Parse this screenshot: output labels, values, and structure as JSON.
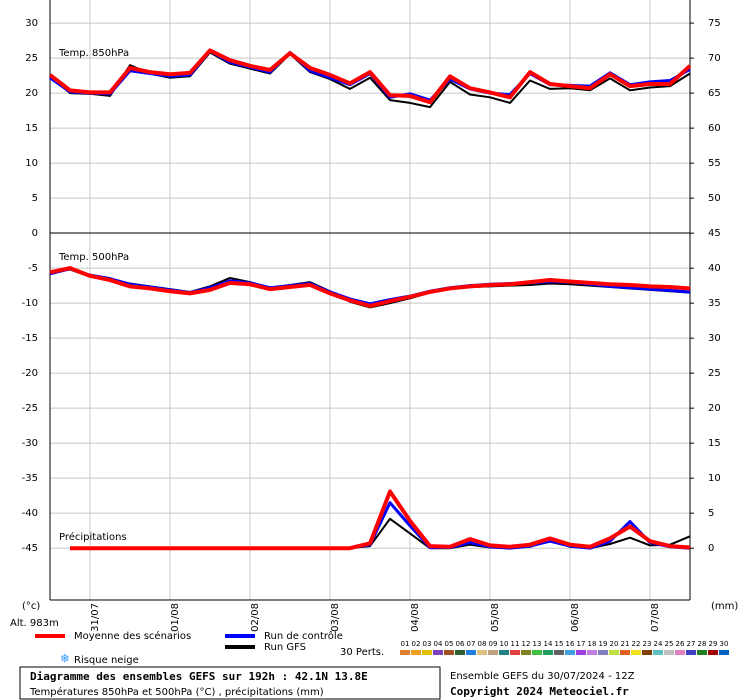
{
  "chart_data": {
    "type": "line",
    "title": "Diagramme des ensembles GEFS sur 192h : 42.1N 13.8E",
    "subtitle": "Températures 850hPa et 500hPa (°C) , précipitations (mm)",
    "run_label": "Ensemble GEFS du 30/07/2024 - 12Z",
    "copyright": "Copyright 2024 Meteociel.fr",
    "label_850": "Temp. 850hPa",
    "label_500": "Temp. 500hPa",
    "label_precip": "Précipitations",
    "y_unit": "(°c)",
    "y2_unit": "(mm)",
    "altitude": "Alt. 983m",
    "snow_label": "Risque neige",
    "perts_label": "30 Perts.",
    "grid": true,
    "x": [
      0,
      6,
      12,
      18,
      24,
      30,
      36,
      42,
      48,
      54,
      60,
      66,
      72,
      78,
      84,
      90,
      96,
      102,
      108,
      114,
      120,
      126,
      132,
      138,
      144,
      150,
      156,
      162,
      168,
      174,
      180,
      186,
      192
    ],
    "xlim": [
      0,
      192
    ],
    "xticks": [
      {
        "value": 12,
        "label": "31/07"
      },
      {
        "value": 36,
        "label": "01/08"
      },
      {
        "value": 60,
        "label": "02/08"
      },
      {
        "value": 84,
        "label": "03/08"
      },
      {
        "value": 108,
        "label": "04/08"
      },
      {
        "value": 132,
        "label": "05/08"
      },
      {
        "value": 156,
        "label": "06/08"
      },
      {
        "value": 180,
        "label": "07/08"
      }
    ],
    "ylim": [
      -52.4,
      33.3
    ],
    "yticks": [
      30,
      25,
      20,
      15,
      10,
      5,
      0,
      -5,
      -10,
      -15,
      -20,
      -25,
      -30,
      -35,
      -40,
      -45
    ],
    "y2lim": [
      -7.4,
      78.3
    ],
    "y2ticks": [
      75,
      70,
      65,
      60,
      55,
      50,
      45,
      40,
      35,
      30,
      25,
      20,
      15,
      10,
      5,
      0
    ],
    "series": [
      {
        "name": "Moyenne des scénarios",
        "color": "#ff0000",
        "t850": [
          22.6,
          20.4,
          20.1,
          20.1,
          23.6,
          23,
          22.7,
          22.9,
          26.1,
          24.7,
          23.9,
          23.3,
          25.7,
          23.6,
          22.6,
          21.4,
          23,
          19.7,
          19.6,
          18.7,
          22.4,
          20.7,
          20.1,
          19.4,
          23,
          21.3,
          21,
          20.7,
          22.7,
          21,
          21.3,
          21.3,
          23.9
        ],
        "t500": [
          -5.6,
          -5,
          -6.1,
          -6.7,
          -7.6,
          -7.9,
          -8.3,
          -8.6,
          -8.1,
          -7.1,
          -7.3,
          -8,
          -7.7,
          -7.4,
          -8.6,
          -9.6,
          -10.4,
          -9.7,
          -9.1,
          -8.4,
          -7.9,
          -7.6,
          -7.4,
          -7.3,
          -7,
          -6.7,
          -6.9,
          -7.1,
          -7.3,
          -7.4,
          -7.6,
          -7.7,
          -7.9
        ],
        "precip": [
          null,
          0,
          0,
          0,
          0,
          0,
          0,
          0,
          0,
          0,
          0,
          0,
          0,
          0,
          0,
          0,
          0.7,
          8.1,
          3.9,
          0.3,
          0.2,
          1.3,
          0.4,
          0.2,
          0.5,
          1.4,
          0.5,
          0.2,
          1.4,
          3.1,
          1,
          0.3,
          0.1
        ]
      },
      {
        "name": "Run de contrôle",
        "color": "#0000ff",
        "t850": [
          22.2,
          20.2,
          20,
          19.9,
          23.2,
          22.8,
          22.4,
          22.6,
          26,
          24.4,
          23.7,
          23,
          25.8,
          23.2,
          22.2,
          21.2,
          22.8,
          19.4,
          19.9,
          19,
          22,
          20.6,
          20,
          19.8,
          22.8,
          21.2,
          21.1,
          21,
          22.9,
          21.2,
          21.6,
          21.8,
          23.4
        ],
        "t500": [
          -5.8,
          -5.1,
          -6,
          -6.5,
          -7.3,
          -7.7,
          -8.1,
          -8.5,
          -7.8,
          -6.8,
          -7.1,
          -7.8,
          -7.5,
          -7.2,
          -8.4,
          -9.4,
          -10.1,
          -9.5,
          -9,
          -8.3,
          -7.8,
          -7.5,
          -7.3,
          -7.2,
          -7.1,
          -6.9,
          -7,
          -7.3,
          -7.6,
          -7.8,
          -8,
          -8.2,
          -8.4
        ],
        "precip": [
          null,
          0,
          0,
          0,
          0,
          0,
          0,
          0,
          0,
          0,
          0,
          0,
          0,
          0,
          0,
          0,
          0.5,
          6.5,
          3.2,
          0.1,
          0.1,
          0.8,
          0.2,
          0,
          0.3,
          1,
          0.3,
          0,
          1,
          3.8,
          0.8,
          0.2,
          0
        ]
      },
      {
        "name": "Run GFS",
        "color": "#000000",
        "t850": [
          22.4,
          20,
          19.9,
          19.6,
          24,
          22.8,
          22.2,
          22.4,
          25.8,
          24.2,
          23.5,
          22.8,
          25.6,
          23,
          22,
          20.6,
          22.2,
          19,
          18.6,
          18,
          21.6,
          19.8,
          19.4,
          18.6,
          21.8,
          20.6,
          20.7,
          20.4,
          22.1,
          20.4,
          20.8,
          21,
          22.8
        ],
        "t500": [
          -5.7,
          -5.2,
          -6.2,
          -6.6,
          -7.2,
          -7.6,
          -8,
          -8.4,
          -7.6,
          -6.4,
          -7,
          -7.8,
          -7.4,
          -7,
          -8.3,
          -9.8,
          -10.6,
          -10,
          -9.3,
          -8.5,
          -8,
          -7.7,
          -7.6,
          -7.5,
          -7.4,
          -7.2,
          -7.3,
          -7.5,
          -7.7,
          -7.9,
          -8.1,
          -8.3,
          -8.5
        ],
        "precip": [
          null,
          0,
          0,
          0,
          0,
          0,
          0,
          0,
          0,
          0,
          0,
          0,
          0,
          0,
          0,
          0,
          0.3,
          4.2,
          2.1,
          0,
          0,
          0.5,
          0.1,
          0,
          0.2,
          1.2,
          0.2,
          0,
          0.6,
          1.5,
          0.4,
          0.5,
          1.7
        ]
      }
    ],
    "perturbations": [
      {
        "label": "01",
        "color": "#e08030"
      },
      {
        "label": "02",
        "color": "#f0a020"
      },
      {
        "label": "03",
        "color": "#e0c000"
      },
      {
        "label": "04",
        "color": "#8040c0"
      },
      {
        "label": "05",
        "color": "#a05020"
      },
      {
        "label": "06",
        "color": "#306030"
      },
      {
        "label": "07",
        "color": "#2080e0"
      },
      {
        "label": "08",
        "color": "#e0c080"
      },
      {
        "label": "09",
        "color": "#c0a080"
      },
      {
        "label": "10",
        "color": "#208080"
      },
      {
        "label": "11",
        "color": "#e04040"
      },
      {
        "label": "12",
        "color": "#808020"
      },
      {
        "label": "13",
        "color": "#40c040"
      },
      {
        "label": "14",
        "color": "#20a060"
      },
      {
        "label": "15",
        "color": "#606060"
      },
      {
        "label": "16",
        "color": "#40a0e0"
      },
      {
        "label": "17",
        "color": "#a040e0"
      },
      {
        "label": "18",
        "color": "#c080e0"
      },
      {
        "label": "19",
        "color": "#8080c0"
      },
      {
        "label": "20",
        "color": "#c0e040"
      },
      {
        "label": "21",
        "color": "#e06020"
      },
      {
        "label": "22",
        "color": "#f0e020"
      },
      {
        "label": "23",
        "color": "#804000"
      },
      {
        "label": "24",
        "color": "#60c0c0"
      },
      {
        "label": "25",
        "color": "#c0c0c0"
      },
      {
        "label": "26",
        "color": "#e080c0"
      },
      {
        "label": "27",
        "color": "#4040c0"
      },
      {
        "label": "28",
        "color": "#208020"
      },
      {
        "label": "29",
        "color": "#a00000"
      },
      {
        "label": "30",
        "color": "#0060c0"
      }
    ]
  }
}
